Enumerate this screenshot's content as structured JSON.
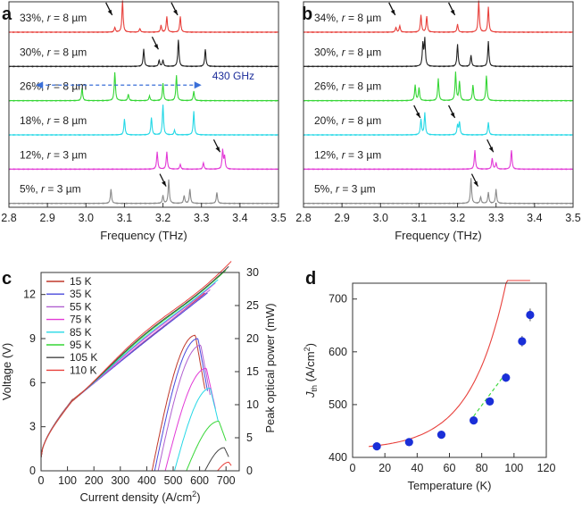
{
  "chart_data": [
    {
      "panel": "a",
      "type": "line",
      "xlabel": "Frequency (THz)",
      "ylabel": "",
      "xlim": [
        2.8,
        3.5
      ],
      "xticks": [
        "2.8",
        "2.9",
        "3.0",
        "3.1",
        "3.2",
        "3.3",
        "3.4",
        "3.5"
      ],
      "xtick_values": [
        2.8,
        2.9,
        3.0,
        3.1,
        3.2,
        3.3,
        3.4,
        3.5
      ],
      "annotation": {
        "text": "430 GHz",
        "from": 2.87,
        "to": 3.3,
        "row": 2
      },
      "series": [
        {
          "name": "33%, r = 8 µm",
          "text_pre": "33%, ",
          "text_r": "r",
          "text_post": " = 8 µm",
          "color": "#e8413c",
          "peaks": [
            [
              3.075,
              0.15
            ],
            [
              3.095,
              1.0
            ],
            [
              3.14,
              0.12
            ],
            [
              3.195,
              0.22
            ],
            [
              3.21,
              0.5
            ],
            [
              3.245,
              0.5
            ]
          ],
          "arrows": [
            3.075,
            3.245
          ]
        },
        {
          "name": "30%, r = 8 µm",
          "text_pre": "30%, ",
          "text_r": "r",
          "text_post": " = 8 µm",
          "color": "#222222",
          "peaks": [
            [
              3.15,
              0.55
            ],
            [
              3.19,
              0.2
            ],
            [
              3.2,
              0.2
            ],
            [
              3.24,
              0.85
            ],
            [
              3.31,
              0.55
            ]
          ],
          "arrows": [
            3.195
          ]
        },
        {
          "name": "26%, r = 8 µm",
          "text_pre": "26%, ",
          "text_r": "r",
          "text_post": " = 8 µm",
          "color": "#36d636",
          "peaks": [
            [
              2.99,
              0.4
            ],
            [
              3.075,
              0.9
            ],
            [
              3.11,
              0.2
            ],
            [
              3.165,
              0.15
            ],
            [
              3.2,
              0.55
            ],
            [
              3.235,
              0.8
            ],
            [
              3.28,
              0.3
            ]
          ],
          "arrows": []
        },
        {
          "name": "18%, r = 8 µm",
          "text_pre": "18%, ",
          "text_r": "r",
          "text_post": " = 8 µm",
          "color": "#25d8e6",
          "peaks": [
            [
              3.1,
              0.5
            ],
            [
              3.17,
              0.55
            ],
            [
              3.2,
              0.95
            ],
            [
              3.23,
              0.15
            ],
            [
              3.28,
              0.75
            ]
          ],
          "arrows": []
        },
        {
          "name": "12%, r = 3 µm",
          "text_pre": "12%, ",
          "text_r": "r",
          "text_post": " = 3 µm",
          "color": "#e23ad6",
          "peaks": [
            [
              3.185,
              0.55
            ],
            [
              3.21,
              0.55
            ],
            [
              3.245,
              0.15
            ],
            [
              3.305,
              0.2
            ],
            [
              3.355,
              0.6
            ],
            [
              3.36,
              0.4
            ]
          ],
          "arrows": [
            3.355
          ]
        },
        {
          "name": "5%, r = 3 µm",
          "text_pre": "5%, ",
          "text_r": "r",
          "text_post": " = 3 µm",
          "color": "#8a8a8a",
          "peaks": [
            [
              3.065,
              0.45
            ],
            [
              3.2,
              0.25
            ],
            [
              3.215,
              0.75
            ],
            [
              3.255,
              0.25
            ],
            [
              3.27,
              0.45
            ],
            [
              3.34,
              0.35
            ]
          ],
          "arrows": [
            3.215
          ]
        }
      ]
    },
    {
      "panel": "b",
      "type": "line",
      "xlabel": "Frequency (THz)",
      "ylabel": "",
      "xlim": [
        2.8,
        3.5
      ],
      "xticks": [
        "2.8",
        "2.9",
        "3.0",
        "3.1",
        "3.2",
        "3.3",
        "3.4",
        "3.5"
      ],
      "xtick_values": [
        2.8,
        2.9,
        3.0,
        3.1,
        3.2,
        3.3,
        3.4,
        3.5
      ],
      "series": [
        {
          "name": "34%, r = 8 µm",
          "text_pre": "34%, ",
          "text_r": "r",
          "text_post": " = 8 µm",
          "color": "#e8413c",
          "peaks": [
            [
              3.04,
              0.15
            ],
            [
              3.05,
              0.2
            ],
            [
              3.105,
              0.55
            ],
            [
              3.12,
              0.5
            ],
            [
              3.2,
              0.25
            ],
            [
              3.255,
              1.0
            ],
            [
              3.28,
              0.8
            ]
          ],
          "arrows": [
            3.045,
            3.2
          ]
        },
        {
          "name": "30%, r = 8 µm",
          "text_pre": "30%, ",
          "text_r": "r",
          "text_post": " = 8 µm",
          "color": "#222222",
          "peaks": [
            [
              3.11,
              0.7
            ],
            [
              3.115,
              0.85
            ],
            [
              3.2,
              0.7
            ],
            [
              3.235,
              0.35
            ],
            [
              3.28,
              0.8
            ]
          ],
          "arrows": []
        },
        {
          "name": "26%, r = 8 µm",
          "text_pre": "26%, ",
          "text_r": "r",
          "text_post": " = 8 µm",
          "color": "#36d636",
          "peaks": [
            [
              3.09,
              0.5
            ],
            [
              3.1,
              0.4
            ],
            [
              3.15,
              0.7
            ],
            [
              3.195,
              0.9
            ],
            [
              3.205,
              0.6
            ],
            [
              3.24,
              0.5
            ],
            [
              3.275,
              0.8
            ]
          ],
          "arrows": []
        },
        {
          "name": "20%, r = 8 µm",
          "text_pre": "20%, ",
          "text_r": "r",
          "text_post": " = 8 µm",
          "color": "#25d8e6",
          "peaks": [
            [
              3.105,
              0.5
            ],
            [
              3.115,
              0.7
            ],
            [
              3.2,
              0.3
            ],
            [
              3.205,
              0.4
            ],
            [
              3.28,
              0.4
            ]
          ],
          "arrows": [
            3.11,
            3.2
          ]
        },
        {
          "name": "12%, r = 3 µm",
          "text_pre": "12%, ",
          "text_r": "r",
          "text_post": " = 3 µm",
          "color": "#e23ad6",
          "peaks": [
            [
              3.245,
              0.6
            ],
            [
              3.29,
              0.35
            ],
            [
              3.3,
              0.2
            ],
            [
              3.34,
              0.6
            ]
          ],
          "arrows": [
            3.3
          ]
        },
        {
          "name": "5%, r = 3 µm",
          "text_pre": "5%, ",
          "text_r": "r",
          "text_post": " = 3 µm",
          "color": "#8a8a8a",
          "peaks": [
            [
              3.235,
              0.8
            ],
            [
              3.26,
              0.2
            ],
            [
              3.28,
              0.35
            ],
            [
              3.3,
              0.45
            ]
          ],
          "arrows": [
            3.26
          ]
        }
      ]
    },
    {
      "panel": "c",
      "type": "line",
      "xlabel": "Current density (A/cm²)",
      "xlabel_pre": "Current density (A/cm",
      "xlabel_sup": "2",
      "xlabel_post": ")",
      "ylabel": "Voltage (V)",
      "y2label": "Peak optical power (mW)",
      "xlim": [
        0,
        750
      ],
      "ylim": [
        0,
        13.5
      ],
      "y2lim": [
        0,
        30
      ],
      "xticks": [
        "0",
        "100",
        "200",
        "300",
        "400",
        "500",
        "600",
        "700"
      ],
      "xtick_values": [
        0,
        100,
        200,
        300,
        400,
        500,
        600,
        700
      ],
      "yticks": [
        "0",
        "3",
        "6",
        "9",
        "12"
      ],
      "ytick_values": [
        0,
        3,
        6,
        9,
        12
      ],
      "y2ticks": [
        "0",
        "5",
        "10",
        "15",
        "20",
        "25",
        "30"
      ],
      "y2tick_values": [
        0,
        5,
        10,
        15,
        20,
        25,
        30
      ],
      "legend": "top-left",
      "series": [
        {
          "name": "15 K",
          "color": "#c0392b",
          "jth": 420,
          "jmax": 620,
          "pmax": 20.5,
          "vend": 12.6
        },
        {
          "name": "35 K",
          "color": "#4a4adb",
          "jth": 430,
          "jmax": 630,
          "pmax": 20,
          "vend": 12.5
        },
        {
          "name": "55 K",
          "color": "#b05fd0",
          "jth": 443,
          "jmax": 640,
          "pmax": 19,
          "vend": 12.6
        },
        {
          "name": "75 K",
          "color": "#e23ad6",
          "jth": 470,
          "jmax": 660,
          "pmax": 15.5,
          "vend": 12.8
        },
        {
          "name": "85 K",
          "color": "#25d8e6",
          "jth": 505,
          "jmax": 670,
          "pmax": 12.5,
          "vend": 12.9
        },
        {
          "name": "95 K",
          "color": "#36d636",
          "jth": 550,
          "jmax": 700,
          "pmax": 7.5,
          "vend": 13.1
        },
        {
          "name": "105 K",
          "color": "#444444",
          "jth": 620,
          "jmax": 710,
          "pmax": 3.5,
          "vend": 13.2
        },
        {
          "name": "110 K",
          "color": "#e8413c",
          "jth": 668,
          "jmax": 720,
          "pmax": 1.3,
          "vend": 13.4
        }
      ]
    },
    {
      "panel": "d",
      "type": "scatter",
      "xlabel": "Temperature (K)",
      "ylabel": "Jth (A/cm²)",
      "ylabel_main": "J",
      "ylabel_sub": "th",
      "ylabel_pre": " (A/cm",
      "ylabel_sup": "2",
      "ylabel_post": ")",
      "xlim": [
        0,
        120
      ],
      "ylim": [
        400,
        730
      ],
      "xticks": [
        "0",
        "20",
        "40",
        "60",
        "80",
        "100",
        "120"
      ],
      "xtick_values": [
        0,
        20,
        40,
        60,
        80,
        100,
        120
      ],
      "yticks": [
        "400",
        "500",
        "600",
        "700"
      ],
      "ytick_values": [
        400,
        500,
        600,
        700
      ],
      "x": [
        15,
        35,
        55,
        75,
        85,
        95,
        105,
        110
      ],
      "y": [
        421,
        429,
        443,
        470,
        506,
        551,
        620,
        670
      ],
      "yerr": [
        5,
        5,
        5,
        5,
        6,
        8,
        10,
        12
      ],
      "fit_color": "#e8413c",
      "fit2_color": "#36d636",
      "marker_color": "#1a2fd8"
    }
  ],
  "panel_labels": [
    "a",
    "b",
    "c",
    "d"
  ]
}
